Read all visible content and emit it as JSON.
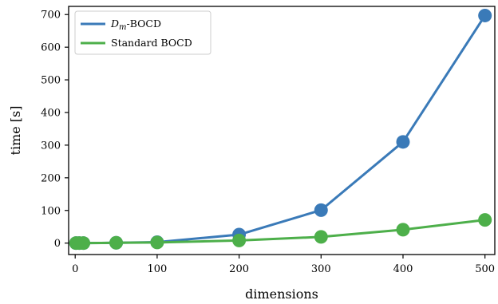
{
  "chart_data": {
    "type": "line",
    "title": "",
    "xlabel": "dimensions",
    "ylabel": "time [s]",
    "xlim": [
      -8,
      512
    ],
    "ylim": [
      -35,
      725
    ],
    "xticks": [
      0,
      100,
      200,
      300,
      400,
      500
    ],
    "yticks": [
      0,
      100,
      200,
      300,
      400,
      500,
      600,
      700
    ],
    "grid": false,
    "legend_position": "top-left",
    "series": [
      {
        "name": "Dm-BOCD",
        "name_main": "D",
        "name_sub": "m",
        "name_suffix": "-BOCD",
        "color": "#3a7ab8",
        "x": [
          1,
          5,
          10,
          50,
          100,
          200,
          300,
          400,
          500
        ],
        "y": [
          0,
          0,
          0,
          1,
          3,
          26,
          101,
          310,
          697
        ]
      },
      {
        "name": "Standard BOCD",
        "color": "#4daf4a",
        "x": [
          1,
          5,
          10,
          50,
          100,
          200,
          300,
          400,
          500
        ],
        "y": [
          0,
          0,
          0,
          1,
          2,
          8,
          19,
          41,
          71
        ]
      }
    ]
  }
}
